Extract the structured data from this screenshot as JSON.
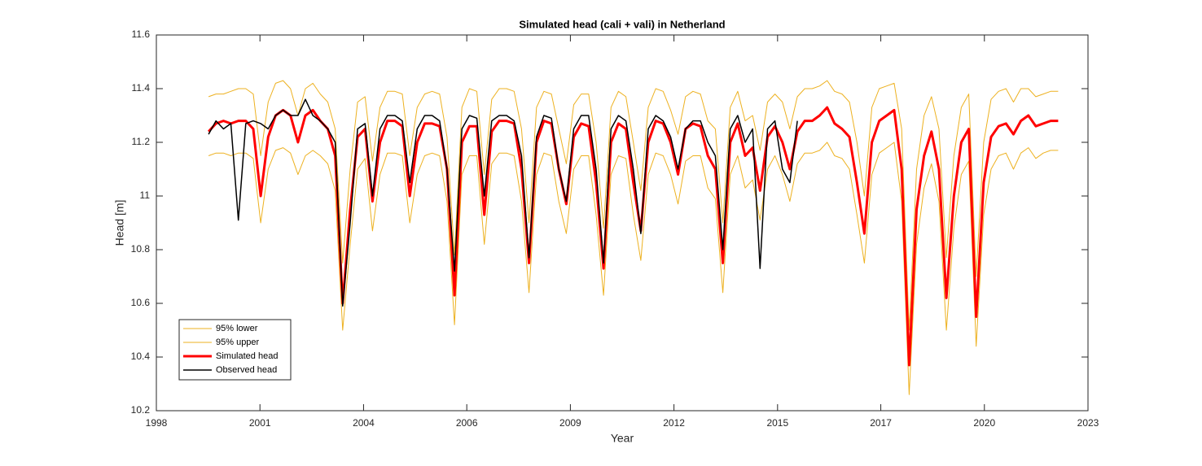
{
  "chart_data": {
    "type": "line",
    "title": "Simulated head (cali + vali) in Netherland",
    "xlabel": "Year",
    "ylabel": "Head [m]",
    "xlim": [
      1998,
      2023
    ],
    "xticks": [
      {
        "value": 1998,
        "label": "1998"
      },
      {
        "value": 2000.78,
        "label": "2001"
      },
      {
        "value": 2003.56,
        "label": "2004"
      },
      {
        "value": 2006.33,
        "label": "2006"
      },
      {
        "value": 2009.11,
        "label": "2009"
      },
      {
        "value": 2011.89,
        "label": "2012"
      },
      {
        "value": 2014.67,
        "label": "2015"
      },
      {
        "value": 2017.44,
        "label": "2017"
      },
      {
        "value": 2020.22,
        "label": "2020"
      },
      {
        "value": 2023,
        "label": "2023"
      }
    ],
    "ylim": [
      10.2,
      11.6
    ],
    "yticks": [
      10.2,
      10.4,
      10.6,
      10.8,
      11,
      11.2,
      11.4,
      11.6
    ],
    "grid": false,
    "legend": "lower left",
    "x": [
      1999.4,
      1999.6,
      1999.8,
      2000.0,
      2000.2,
      2000.4,
      2000.6,
      2000.8,
      2001.0,
      2001.2,
      2001.4,
      2001.6,
      2001.8,
      2002.0,
      2002.2,
      2002.4,
      2002.6,
      2002.8,
      2003.0,
      2003.2,
      2003.4,
      2003.6,
      2003.8,
      2004.0,
      2004.2,
      2004.4,
      2004.6,
      2004.8,
      2005.0,
      2005.2,
      2005.4,
      2005.6,
      2005.8,
      2006.0,
      2006.2,
      2006.4,
      2006.6,
      2006.8,
      2007.0,
      2007.2,
      2007.4,
      2007.6,
      2007.8,
      2008.0,
      2008.2,
      2008.4,
      2008.6,
      2008.8,
      2009.0,
      2009.2,
      2009.4,
      2009.6,
      2009.8,
      2010.0,
      2010.2,
      2010.4,
      2010.6,
      2010.8,
      2011.0,
      2011.2,
      2011.4,
      2011.6,
      2011.8,
      2012.0,
      2012.2,
      2012.4,
      2012.6,
      2012.8,
      2013.0,
      2013.2,
      2013.4,
      2013.6,
      2013.8,
      2014.0,
      2014.2,
      2014.4,
      2014.6,
      2014.8,
      2015.0,
      2015.2,
      2015.4,
      2015.6,
      2015.8,
      2016.0,
      2016.2,
      2016.4,
      2016.6,
      2016.8,
      2017.0,
      2017.2,
      2017.4,
      2017.6,
      2017.8,
      2018.0,
      2018.2,
      2018.4,
      2018.6,
      2018.8,
      2019.0,
      2019.2,
      2019.4,
      2019.6,
      2019.8,
      2020.0,
      2020.2,
      2020.4,
      2020.6,
      2020.8,
      2021.0,
      2021.2,
      2021.4,
      2021.6,
      2021.8,
      2022.0,
      2022.2
    ],
    "series": [
      {
        "name": "95% lower",
        "color": "#edb120",
        "width": 1,
        "values": [
          11.15,
          11.16,
          11.16,
          11.15,
          11.16,
          11.16,
          11.14,
          10.9,
          11.1,
          11.17,
          11.18,
          11.16,
          11.08,
          11.15,
          11.17,
          11.15,
          11.12,
          11.02,
          10.5,
          10.82,
          11.1,
          11.14,
          10.87,
          11.08,
          11.16,
          11.16,
          11.15,
          10.9,
          11.08,
          11.15,
          11.16,
          11.15,
          10.98,
          10.52,
          11.08,
          11.15,
          11.15,
          10.82,
          11.12,
          11.16,
          11.16,
          11.15,
          10.98,
          10.64,
          11.08,
          11.16,
          11.15,
          10.98,
          10.86,
          11.1,
          11.15,
          11.15,
          10.93,
          10.63,
          11.08,
          11.15,
          11.14,
          10.93,
          10.76,
          11.08,
          11.16,
          11.15,
          11.08,
          10.97,
          11.13,
          11.15,
          11.15,
          11.03,
          10.99,
          10.64,
          11.08,
          11.15,
          11.03,
          11.06,
          10.91,
          11.1,
          11.15,
          11.08,
          10.98,
          11.12,
          11.16,
          11.16,
          11.17,
          11.2,
          11.15,
          11.14,
          11.1,
          10.93,
          10.75,
          11.08,
          11.16,
          11.18,
          11.2,
          10.98,
          10.26,
          10.82,
          11.03,
          11.12,
          10.98,
          10.5,
          10.88,
          11.08,
          11.13,
          10.44,
          10.93,
          11.1,
          11.15,
          11.16,
          11.1,
          11.16,
          11.18,
          11.14,
          11.16,
          11.17,
          11.17
        ]
      },
      {
        "name": "95% upper",
        "color": "#edb120",
        "width": 1,
        "values": [
          11.37,
          11.38,
          11.38,
          11.39,
          11.4,
          11.4,
          11.38,
          11.15,
          11.35,
          11.42,
          11.43,
          11.4,
          11.3,
          11.4,
          11.42,
          11.38,
          11.35,
          11.25,
          10.75,
          11.1,
          11.35,
          11.37,
          11.13,
          11.33,
          11.39,
          11.39,
          11.38,
          11.15,
          11.33,
          11.38,
          11.39,
          11.38,
          11.22,
          10.78,
          11.33,
          11.4,
          11.39,
          11.08,
          11.36,
          11.4,
          11.4,
          11.39,
          11.25,
          10.9,
          11.33,
          11.39,
          11.38,
          11.25,
          11.12,
          11.34,
          11.38,
          11.38,
          11.2,
          10.88,
          11.33,
          11.39,
          11.37,
          11.2,
          11.02,
          11.33,
          11.4,
          11.39,
          11.32,
          11.23,
          11.37,
          11.39,
          11.38,
          11.28,
          11.25,
          10.9,
          11.33,
          11.39,
          11.28,
          11.3,
          11.17,
          11.35,
          11.38,
          11.35,
          11.25,
          11.37,
          11.4,
          11.4,
          11.41,
          11.43,
          11.39,
          11.38,
          11.35,
          11.2,
          11.0,
          11.33,
          11.4,
          11.41,
          11.42,
          11.25,
          10.5,
          11.1,
          11.3,
          11.37,
          11.25,
          10.77,
          11.15,
          11.33,
          11.38,
          10.7,
          11.2,
          11.36,
          11.39,
          11.4,
          11.35,
          11.4,
          11.4,
          11.37,
          11.38,
          11.39,
          11.39
        ]
      },
      {
        "name": "Simulated head",
        "color": "#ff0000",
        "width": 3,
        "values": [
          11.24,
          11.27,
          11.28,
          11.27,
          11.28,
          11.28,
          11.25,
          11.0,
          11.22,
          11.3,
          11.32,
          11.3,
          11.2,
          11.3,
          11.32,
          11.28,
          11.25,
          11.15,
          10.6,
          10.95,
          11.22,
          11.25,
          10.98,
          11.2,
          11.28,
          11.28,
          11.26,
          11.0,
          11.2,
          11.27,
          11.27,
          11.26,
          11.1,
          10.63,
          11.2,
          11.26,
          11.26,
          10.93,
          11.24,
          11.28,
          11.28,
          11.27,
          11.1,
          10.75,
          11.2,
          11.28,
          11.27,
          11.1,
          10.97,
          11.22,
          11.27,
          11.26,
          11.05,
          10.73,
          11.2,
          11.27,
          11.25,
          11.05,
          10.87,
          11.2,
          11.28,
          11.27,
          11.2,
          11.08,
          11.25,
          11.27,
          11.26,
          11.15,
          11.1,
          10.75,
          11.2,
          11.27,
          11.15,
          11.18,
          11.02,
          11.22,
          11.26,
          11.2,
          11.1,
          11.24,
          11.28,
          11.28,
          11.3,
          11.33,
          11.27,
          11.25,
          11.22,
          11.05,
          10.86,
          11.2,
          11.28,
          11.3,
          11.32,
          11.1,
          10.37,
          10.95,
          11.15,
          11.24,
          11.1,
          10.62,
          11.0,
          11.2,
          11.25,
          10.55,
          11.05,
          11.22,
          11.26,
          11.27,
          11.23,
          11.28,
          11.3,
          11.26,
          11.27,
          11.28,
          11.28
        ]
      },
      {
        "name": "Observed head",
        "color": "#000000",
        "width": 1.5,
        "values": [
          11.23,
          11.28,
          11.25,
          11.27,
          10.91,
          11.27,
          11.28,
          11.27,
          11.25,
          11.3,
          11.32,
          11.3,
          11.3,
          11.36,
          11.3,
          11.28,
          11.25,
          11.2,
          10.59,
          10.9,
          11.25,
          11.27,
          11.0,
          11.25,
          11.3,
          11.3,
          11.28,
          11.05,
          11.25,
          11.3,
          11.3,
          11.28,
          11.1,
          10.72,
          11.25,
          11.3,
          11.29,
          11.0,
          11.28,
          11.3,
          11.3,
          11.28,
          11.15,
          10.77,
          11.22,
          11.3,
          11.29,
          11.1,
          10.98,
          11.25,
          11.3,
          11.3,
          11.1,
          10.75,
          11.25,
          11.3,
          11.28,
          11.1,
          10.86,
          11.25,
          11.3,
          11.28,
          11.22,
          11.1,
          11.25,
          11.28,
          11.28,
          11.2,
          11.15,
          10.8,
          11.25,
          11.3,
          11.2,
          11.25,
          10.73,
          11.25,
          11.28,
          11.1,
          11.05,
          11.28,
          null,
          null,
          null,
          null,
          null,
          null,
          null,
          null,
          null,
          null,
          null,
          null,
          null,
          null,
          null,
          null,
          null,
          null,
          null,
          null,
          null,
          null,
          null,
          null,
          null,
          null,
          null,
          null,
          null,
          null,
          null,
          null,
          null,
          null,
          null
        ]
      }
    ]
  }
}
